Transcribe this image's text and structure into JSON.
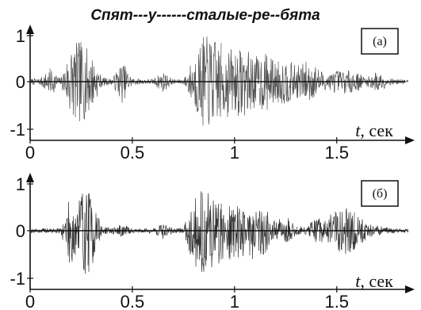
{
  "chart_data": [
    {
      "type": "line",
      "title": "Спят---у------сталые-ре--бята",
      "panel_label": "(а)",
      "xlabel_var": "t",
      "xlabel_unit": ", сек",
      "ylabel": "",
      "xlim": [
        0,
        1.85
      ],
      "ylim": [
        -1,
        1
      ],
      "x_ticks": [
        0,
        0.5,
        1,
        1.5
      ],
      "x_tick_labels": [
        "0",
        "0.5",
        "1",
        "1.5"
      ],
      "y_ticks": [
        1,
        0,
        -1
      ],
      "y_tick_labels": [
        "1",
        "0",
        "-1"
      ],
      "series_color": "#555555",
      "envelope": {
        "x": [
          0.0,
          0.05,
          0.1,
          0.15,
          0.2,
          0.25,
          0.3,
          0.35,
          0.4,
          0.45,
          0.5,
          0.55,
          0.6,
          0.65,
          0.7,
          0.75,
          0.8,
          0.85,
          0.9,
          0.95,
          1.0,
          1.05,
          1.1,
          1.15,
          1.2,
          1.25,
          1.3,
          1.35,
          1.4,
          1.45,
          1.5,
          1.55,
          1.6,
          1.65,
          1.7,
          1.75,
          1.8,
          1.85
        ],
        "amplitude": [
          0.06,
          0.08,
          0.3,
          0.07,
          0.8,
          0.9,
          0.6,
          0.1,
          0.06,
          0.45,
          0.08,
          0.05,
          0.06,
          0.22,
          0.05,
          0.05,
          0.55,
          1.0,
          0.95,
          0.8,
          0.7,
          0.75,
          0.55,
          0.65,
          0.45,
          0.5,
          0.35,
          0.45,
          0.35,
          0.15,
          0.25,
          0.25,
          0.2,
          0.1,
          0.25,
          0.08,
          0.05,
          0.05
        ]
      }
    },
    {
      "type": "line",
      "title": "",
      "panel_label": "(б)",
      "xlabel_var": "t",
      "xlabel_unit": ", сек",
      "ylabel": "",
      "xlim": [
        0,
        1.85
      ],
      "ylim": [
        -1,
        1
      ],
      "x_ticks": [
        0,
        0.5,
        1,
        1.5
      ],
      "x_tick_labels": [
        "0",
        "0.5",
        "1",
        "1.5"
      ],
      "y_ticks": [
        1,
        0,
        -1
      ],
      "y_tick_labels": [
        "1",
        "0",
        "-1"
      ],
      "series_color": "#333333",
      "envelope": {
        "x": [
          0.0,
          0.05,
          0.1,
          0.15,
          0.2,
          0.25,
          0.3,
          0.35,
          0.4,
          0.45,
          0.5,
          0.55,
          0.6,
          0.65,
          0.7,
          0.75,
          0.8,
          0.85,
          0.9,
          0.95,
          1.0,
          1.05,
          1.1,
          1.15,
          1.2,
          1.25,
          1.3,
          1.35,
          1.4,
          1.45,
          1.5,
          1.55,
          1.6,
          1.65,
          1.7,
          1.75,
          1.8,
          1.85
        ],
        "amplitude": [
          0.04,
          0.05,
          0.05,
          0.06,
          0.8,
          1.0,
          0.85,
          0.1,
          0.05,
          0.15,
          0.05,
          0.04,
          0.06,
          0.18,
          0.05,
          0.05,
          0.75,
          0.95,
          0.8,
          0.7,
          0.55,
          0.6,
          0.6,
          0.5,
          0.2,
          0.35,
          0.1,
          0.08,
          0.3,
          0.2,
          0.6,
          0.5,
          0.4,
          0.15,
          0.12,
          0.06,
          0.05,
          0.04
        ]
      }
    }
  ]
}
